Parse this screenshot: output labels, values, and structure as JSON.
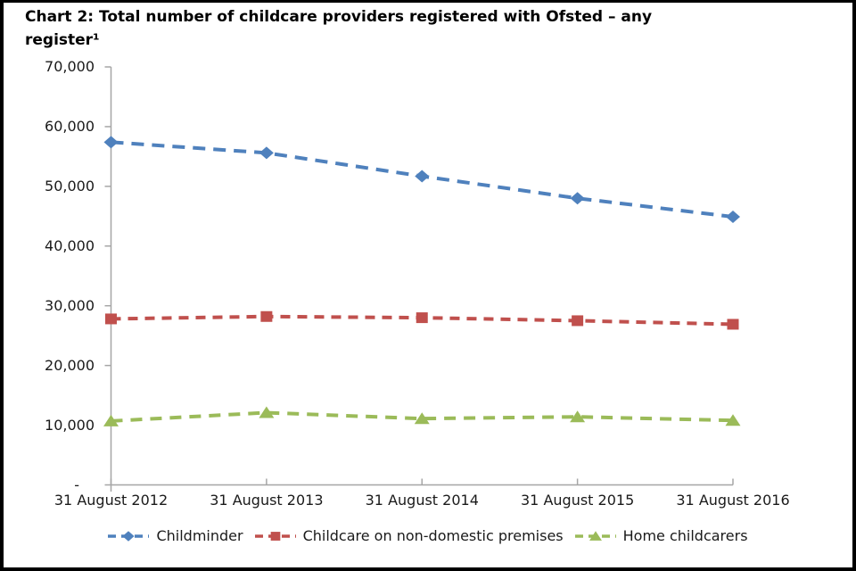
{
  "title": {
    "line1": "Chart 2: Total number of childcare providers registered with Ofsted – any",
    "line2": "register¹"
  },
  "colors": {
    "axis": "#a6a6a6",
    "text": "#1a1a1a",
    "border": "#000000",
    "background": "#ffffff",
    "childminder_blue": "#4F81BD",
    "non_domestic_red": "#C0504D",
    "home_childcarers_green": "#9BBB59"
  },
  "chart_data": {
    "type": "line",
    "title": "Chart 2: Total number of childcare providers registered with Ofsted – any register¹",
    "categories": [
      "31 August 2012",
      "31 August 2013",
      "31 August 2014",
      "31 August 2015",
      "31 August 2016"
    ],
    "series": [
      {
        "name": "Childminder",
        "color": "#4F81BD",
        "marker": "diamond",
        "line_style": "dashed",
        "values": [
          57400,
          55600,
          51700,
          48000,
          44900
        ]
      },
      {
        "name": "Childcare on non-domestic premises",
        "color": "#C0504D",
        "marker": "square",
        "line_style": "dashed",
        "values": [
          27800,
          28200,
          28000,
          27500,
          26900
        ]
      },
      {
        "name": "Home childcarers",
        "color": "#9BBB59",
        "marker": "triangle",
        "line_style": "dashed",
        "values": [
          10700,
          12100,
          11100,
          11400,
          10800
        ]
      }
    ],
    "ylim": [
      0,
      70000
    ],
    "y_axis": {
      "tick_interval": 10000,
      "tick_labels_top_to_bottom": [
        "70,000",
        "60,000",
        "50,000",
        "40,000",
        "30,000",
        "20,000",
        "10,000",
        "-"
      ],
      "zero_label": "-"
    },
    "xlabel": "",
    "ylabel": "",
    "grid": false,
    "legend_position": "bottom"
  }
}
